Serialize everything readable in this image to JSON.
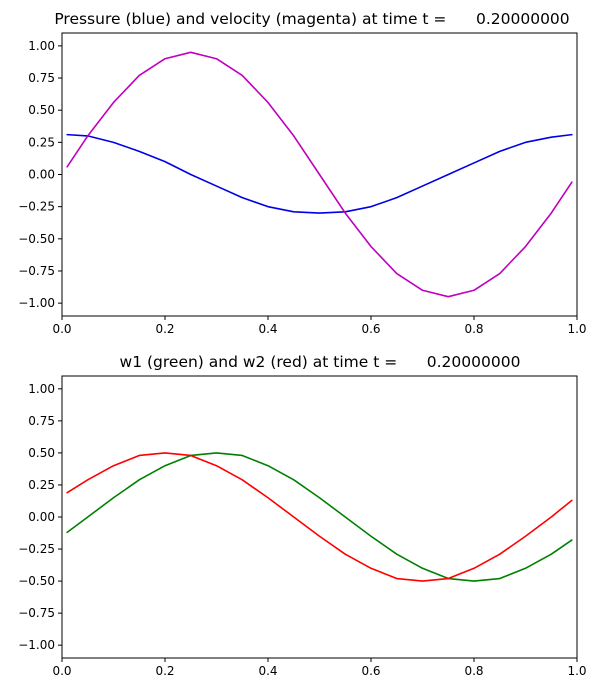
{
  "chart_data": [
    {
      "type": "line",
      "title": "Pressure (blue) and velocity (magenta) at time t =      0.20000000",
      "xlabel": "",
      "ylabel": "",
      "xlim": [
        0,
        1
      ],
      "ylim": [
        -1.1,
        1.1
      ],
      "grid": false,
      "x_ticks": [
        0,
        0.2,
        0.4,
        0.6,
        0.8,
        1
      ],
      "x_tick_labels": [
        "0.0",
        "0.2",
        "0.4",
        "0.6",
        "0.8",
        "1.0"
      ],
      "y_ticks": [
        -1,
        -0.75,
        -0.5,
        -0.25,
        0,
        0.25,
        0.5,
        0.75,
        1
      ],
      "y_tick_labels": [
        "−1.00",
        "−0.75",
        "−0.50",
        "−0.25",
        "0.00",
        "0.25",
        "0.50",
        "0.75",
        "1.00"
      ],
      "x": [
        0.01,
        0.05,
        0.1,
        0.15,
        0.2,
        0.25,
        0.3,
        0.35,
        0.4,
        0.45,
        0.5,
        0.55,
        0.6,
        0.65,
        0.7,
        0.75,
        0.8,
        0.85,
        0.9,
        0.95,
        0.99
      ],
      "series": [
        {
          "color": "#0000e6",
          "values": [
            0.31,
            0.3,
            0.25,
            0.18,
            0.1,
            0.0,
            -0.09,
            -0.18,
            -0.25,
            -0.29,
            -0.3,
            -0.29,
            -0.25,
            -0.18,
            -0.09,
            0.0,
            0.09,
            0.18,
            0.25,
            0.29,
            0.31
          ]
        },
        {
          "color": "#bf00bf",
          "values": [
            0.06,
            0.3,
            0.56,
            0.77,
            0.9,
            0.95,
            0.9,
            0.77,
            0.56,
            0.3,
            0.0,
            -0.3,
            -0.56,
            -0.77,
            -0.9,
            -0.95,
            -0.9,
            -0.77,
            -0.56,
            -0.3,
            -0.06
          ]
        }
      ]
    },
    {
      "type": "line",
      "title": "w1 (green) and w2 (red) at time t =      0.20000000",
      "xlabel": "",
      "ylabel": "",
      "xlim": [
        0,
        1
      ],
      "ylim": [
        -1.1,
        1.1
      ],
      "grid": false,
      "x_ticks": [
        0,
        0.2,
        0.4,
        0.6,
        0.8,
        1
      ],
      "x_tick_labels": [
        "0.0",
        "0.2",
        "0.4",
        "0.6",
        "0.8",
        "1.0"
      ],
      "y_ticks": [
        -1,
        -0.75,
        -0.5,
        -0.25,
        0,
        0.25,
        0.5,
        0.75,
        1
      ],
      "y_tick_labels": [
        "−1.00",
        "−0.75",
        "−0.50",
        "−0.25",
        "0.00",
        "0.25",
        "0.50",
        "0.75",
        "1.00"
      ],
      "x": [
        0.01,
        0.05,
        0.1,
        0.15,
        0.2,
        0.25,
        0.3,
        0.35,
        0.4,
        0.45,
        0.5,
        0.55,
        0.6,
        0.65,
        0.7,
        0.75,
        0.8,
        0.85,
        0.9,
        0.95,
        0.99
      ],
      "series": [
        {
          "color": "#008000",
          "values": [
            -0.12,
            0.0,
            0.15,
            0.29,
            0.4,
            0.48,
            0.5,
            0.48,
            0.4,
            0.29,
            0.15,
            0.0,
            -0.15,
            -0.29,
            -0.4,
            -0.48,
            -0.5,
            -0.48,
            -0.4,
            -0.29,
            -0.18
          ]
        },
        {
          "color": "#ff0000",
          "values": [
            0.19,
            0.29,
            0.4,
            0.48,
            0.5,
            0.48,
            0.4,
            0.29,
            0.15,
            0.0,
            -0.15,
            -0.29,
            -0.4,
            -0.48,
            -0.5,
            -0.48,
            -0.4,
            -0.29,
            -0.15,
            0.0,
            0.13
          ]
        }
      ]
    }
  ]
}
